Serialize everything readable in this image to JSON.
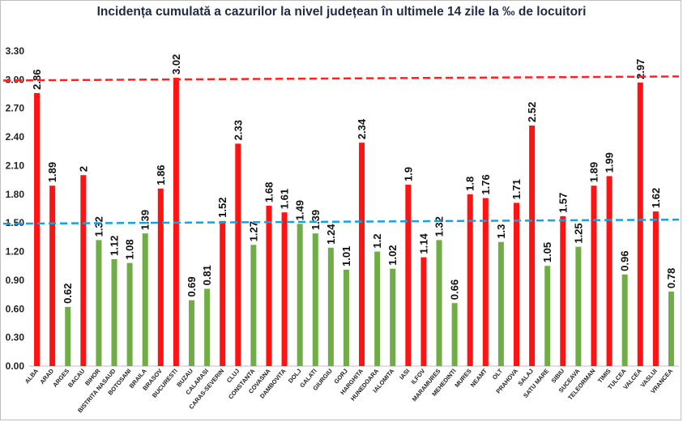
{
  "chart_data": {
    "type": "bar",
    "title": "Incidența cumulată a cazurilor la nivel județean în ultimele 14 zile la ‰ de locuitori",
    "xlabel": "",
    "ylabel": "",
    "ylim": [
      0,
      3.3
    ],
    "yticks": [
      "0.00",
      "0.30",
      "0.60",
      "0.90",
      "1.20",
      "1.50",
      "1.80",
      "2.10",
      "2.40",
      "2.70",
      "3.00",
      "3.30"
    ],
    "categories": [
      "ALBA",
      "ARAD",
      "ARGES",
      "BACAU",
      "BIHOR",
      "BISTRITA NASAUD",
      "BOTOSANI",
      "BRAILA",
      "BRASOV",
      "BUCURESTI",
      "BUZAU",
      "CALARASI",
      "CARAS-SEVERIN",
      "CLUJ",
      "CONSTANTA",
      "COVASNA",
      "DAMBOVITA",
      "DOLJ",
      "GALATI",
      "GIURGIU",
      "GORJ",
      "HARGHITA",
      "HUNEDOARA",
      "IALOMITA",
      "IASI",
      "ILFOV",
      "MARAMURES",
      "MEHEDINTI",
      "MURES",
      "NEAMT",
      "OLT",
      "PRAHOVA",
      "SALAJ",
      "SATU MARE",
      "SIBIU",
      "SUCEAVA",
      "TELEORMAN",
      "TIMIS",
      "TULCEA",
      "VALCEA",
      "VASLUI",
      "VRANCEA"
    ],
    "values": [
      2.86,
      1.89,
      0.62,
      2,
      1.32,
      1.12,
      1.08,
      1.39,
      1.86,
      3.02,
      0.69,
      0.81,
      1.52,
      2.33,
      1.27,
      1.68,
      1.61,
      1.49,
      1.39,
      1.24,
      1.01,
      2.34,
      1.2,
      1.02,
      1.9,
      1.14,
      1.32,
      0.66,
      1.8,
      1.76,
      1.3,
      1.71,
      2.52,
      1.05,
      1.57,
      1.25,
      1.89,
      1.99,
      0.96,
      2.97,
      1.62,
      0.78
    ],
    "value_labels": [
      "2.86",
      "1.89",
      "0.62",
      "2",
      "1.32",
      "1.12",
      "1.08",
      "1.39",
      "1.86",
      "3.02",
      "0.69",
      "0.81",
      "1.52",
      "2.33",
      "1.27",
      "1.68",
      "1.61",
      "1.49",
      "1.39",
      "1.24",
      "1.01",
      "2.34",
      "1.2",
      "1.02",
      "1.9",
      "1.14",
      "1.32",
      "0.66",
      "1.8",
      "1.76",
      "1.3",
      "1.71",
      "2.52",
      "1.05",
      "1.57",
      "1.25",
      "1.89",
      "1.99",
      "0.96",
      "2.97",
      "1.62",
      "0.78"
    ],
    "bar_colors": [
      "red",
      "red",
      "green",
      "red",
      "green",
      "green",
      "green",
      "green",
      "red",
      "red",
      "green",
      "green",
      "red",
      "red",
      "green",
      "red",
      "red",
      "green",
      "green",
      "green",
      "green",
      "red",
      "green",
      "green",
      "red",
      "red",
      "green",
      "green",
      "red",
      "red",
      "green",
      "red",
      "red",
      "green",
      "red",
      "green",
      "red",
      "red",
      "green",
      "red",
      "red",
      "green"
    ],
    "reference_lines": [
      {
        "value": 3.0,
        "color": "#ff2020",
        "style": "dashed"
      },
      {
        "value": 1.5,
        "color": "#1aa0e0",
        "style": "dashed"
      }
    ],
    "colors": {
      "red": "#ff1212",
      "green": "#70ad47"
    },
    "grid": false,
    "legend": "none"
  }
}
